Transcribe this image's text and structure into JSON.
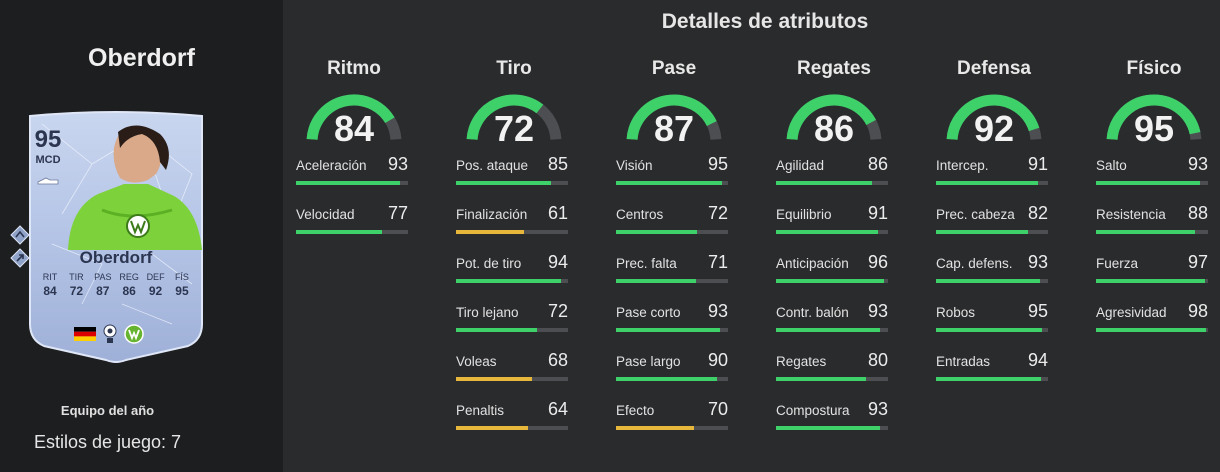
{
  "header": {
    "title": "Detalles de atributos"
  },
  "player": {
    "name": "Oberdorf",
    "card": {
      "rating": "95",
      "position": "MCD",
      "name": "Oberdorf",
      "stat_labels": [
        "RIT",
        "TIR",
        "PAS",
        "REG",
        "DEF",
        "FÍS"
      ],
      "stat_values": [
        "84",
        "72",
        "87",
        "86",
        "92",
        "95"
      ]
    },
    "team_label": "Equipo del año",
    "playstyles": "Estilos de juego: 7"
  },
  "colors": {
    "green": "#3ed16a",
    "yellow": "#e7b73b",
    "track": "#4d4e51"
  },
  "categories": [
    {
      "name": "Ritmo",
      "value": "84",
      "fraction": 0.84,
      "attributes": [
        {
          "name": "Aceleración",
          "value": "93",
          "fraction": 0.93,
          "color": "#3ed16a"
        },
        {
          "name": "Velocidad",
          "value": "77",
          "fraction": 0.77,
          "color": "#3ed16a"
        }
      ]
    },
    {
      "name": "Tiro",
      "value": "72",
      "fraction": 0.72,
      "attributes": [
        {
          "name": "Pos. ataque",
          "value": "85",
          "fraction": 0.85,
          "color": "#3ed16a"
        },
        {
          "name": "Finalización",
          "value": "61",
          "fraction": 0.61,
          "color": "#e7b73b"
        },
        {
          "name": "Pot. de tiro",
          "value": "94",
          "fraction": 0.94,
          "color": "#3ed16a"
        },
        {
          "name": "Tiro lejano",
          "value": "72",
          "fraction": 0.72,
          "color": "#3ed16a"
        },
        {
          "name": "Voleas",
          "value": "68",
          "fraction": 0.68,
          "color": "#e7b73b"
        },
        {
          "name": "Penaltis",
          "value": "64",
          "fraction": 0.64,
          "color": "#e7b73b"
        }
      ]
    },
    {
      "name": "Pase",
      "value": "87",
      "fraction": 0.87,
      "attributes": [
        {
          "name": "Visión",
          "value": "95",
          "fraction": 0.95,
          "color": "#3ed16a"
        },
        {
          "name": "Centros",
          "value": "72",
          "fraction": 0.72,
          "color": "#3ed16a"
        },
        {
          "name": "Prec. falta",
          "value": "71",
          "fraction": 0.71,
          "color": "#3ed16a"
        },
        {
          "name": "Pase corto",
          "value": "93",
          "fraction": 0.93,
          "color": "#3ed16a"
        },
        {
          "name": "Pase largo",
          "value": "90",
          "fraction": 0.9,
          "color": "#3ed16a"
        },
        {
          "name": "Efecto",
          "value": "70",
          "fraction": 0.7,
          "color": "#e7b73b"
        }
      ]
    },
    {
      "name": "Regates",
      "value": "86",
      "fraction": 0.86,
      "attributes": [
        {
          "name": "Agilidad",
          "value": "86",
          "fraction": 0.86,
          "color": "#3ed16a"
        },
        {
          "name": "Equilibrio",
          "value": "91",
          "fraction": 0.91,
          "color": "#3ed16a"
        },
        {
          "name": "Anticipación",
          "value": "96",
          "fraction": 0.96,
          "color": "#3ed16a"
        },
        {
          "name": "Contr. balón",
          "value": "93",
          "fraction": 0.93,
          "color": "#3ed16a"
        },
        {
          "name": "Regates",
          "value": "80",
          "fraction": 0.8,
          "color": "#3ed16a"
        },
        {
          "name": "Compostura",
          "value": "93",
          "fraction": 0.93,
          "color": "#3ed16a"
        }
      ]
    },
    {
      "name": "Defensa",
      "value": "92",
      "fraction": 0.92,
      "attributes": [
        {
          "name": "Intercep.",
          "value": "91",
          "fraction": 0.91,
          "color": "#3ed16a"
        },
        {
          "name": "Prec. cabeza",
          "value": "82",
          "fraction": 0.82,
          "color": "#3ed16a"
        },
        {
          "name": "Cap. defens.",
          "value": "93",
          "fraction": 0.93,
          "color": "#3ed16a"
        },
        {
          "name": "Robos",
          "value": "95",
          "fraction": 0.95,
          "color": "#3ed16a"
        },
        {
          "name": "Entradas",
          "value": "94",
          "fraction": 0.94,
          "color": "#3ed16a"
        }
      ]
    },
    {
      "name": "Físico",
      "value": "95",
      "fraction": 0.95,
      "attributes": [
        {
          "name": "Salto",
          "value": "93",
          "fraction": 0.93,
          "color": "#3ed16a"
        },
        {
          "name": "Resistencia",
          "value": "88",
          "fraction": 0.88,
          "color": "#3ed16a"
        },
        {
          "name": "Fuerza",
          "value": "97",
          "fraction": 0.97,
          "color": "#3ed16a"
        },
        {
          "name": "Agresividad",
          "value": "98",
          "fraction": 0.98,
          "color": "#3ed16a"
        }
      ]
    }
  ]
}
